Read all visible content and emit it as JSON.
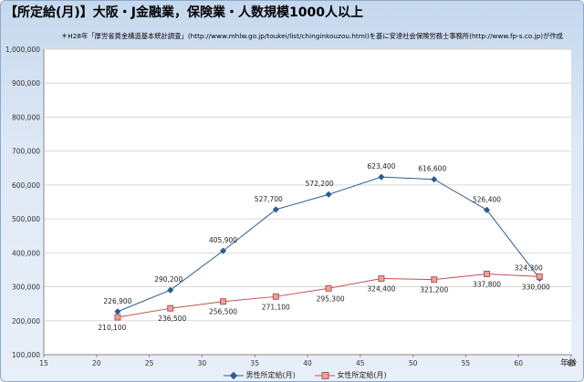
{
  "title": "【所定給(月)】大阪・J金融業，保険業・人数規模1000人以上",
  "subtitle": "＊H28年「厚労省賃金構造基本統計調査」(http://www.mhlw.go.jp/toukei/list/chinginkouzou.html)を基に安達社会保険労務士事務所(http://www.fp-s.co.jp)が作成",
  "colors": {
    "male": "#2e5b8f",
    "female": "#c0504d",
    "female_fill": "#e7a3a1",
    "grid": "#d9d9d9"
  },
  "chart_data": {
    "type": "line",
    "title": "【所定給(月)】大阪・J金融業，保険業・人数規模1000人以上",
    "xlabel": "年齢",
    "ylabel": "",
    "xlim": [
      15,
      65
    ],
    "ylim": [
      100000,
      1000000
    ],
    "x_ticks": [
      15,
      20,
      25,
      30,
      35,
      40,
      45,
      50,
      55,
      60,
      65
    ],
    "y_ticks": [
      100000,
      200000,
      300000,
      400000,
      500000,
      600000,
      700000,
      800000,
      900000,
      1000000
    ],
    "y_tick_labels": [
      "100,000",
      "200,000",
      "300,000",
      "400,000",
      "500,000",
      "600,000",
      "700,000",
      "800,000",
      "900,000",
      "1,000,000"
    ],
    "grid": "horizontal",
    "legend_position": "bottom",
    "series": [
      {
        "name": "男性所定給(月)",
        "x": [
          22,
          27,
          32,
          37,
          42,
          47,
          52,
          57,
          62
        ],
        "values": [
          226900,
          290200,
          405900,
          527700,
          572200,
          623400,
          616600,
          526400,
          324300
        ],
        "labels": [
          "226,900",
          "290,200",
          "405,900",
          "527,700",
          "572,200",
          "623,400",
          "616,600",
          "526,400",
          "324,300"
        ]
      },
      {
        "name": "女性所定給(月)",
        "x": [
          22,
          27,
          32,
          37,
          42,
          47,
          52,
          57,
          62
        ],
        "values": [
          210100,
          236500,
          256500,
          271100,
          295300,
          324400,
          321200,
          337800,
          330000
        ],
        "labels": [
          "210,100",
          "236,500",
          "256,500",
          "271,100",
          "295,300",
          "324,400",
          "321,200",
          "337,800",
          "330,000"
        ]
      }
    ]
  }
}
